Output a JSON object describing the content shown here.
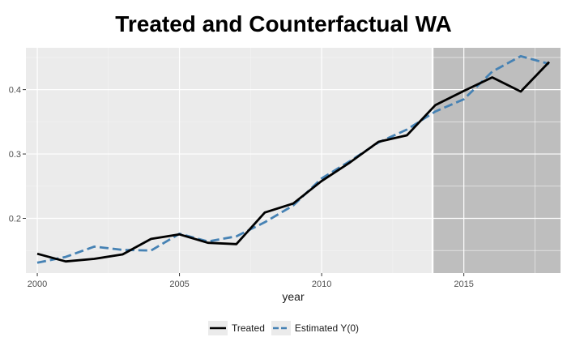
{
  "chart_data": {
    "type": "line",
    "title": "Treated and Counterfactual WA",
    "xlabel": "year",
    "ylabel": "",
    "xlim": [
      1999.6,
      2018.4
    ],
    "ylim": [
      0.115,
      0.465
    ],
    "x_ticks": [
      2000,
      2005,
      2010,
      2015
    ],
    "x_tick_labels": [
      "2000",
      "2005",
      "2010",
      "2015"
    ],
    "y_ticks": [
      0.2,
      0.3,
      0.4
    ],
    "y_tick_labels": [
      "0.2",
      "0.3",
      "0.4"
    ],
    "treatment_start": 2014,
    "treatment_line_x": 2013.9,
    "shaded_region": [
      2013.9,
      2018.4
    ],
    "grid": true,
    "legend_position": "bottom",
    "x": [
      2000,
      2001,
      2002,
      2003,
      2004,
      2005,
      2006,
      2007,
      2008,
      2009,
      2010,
      2011,
      2012,
      2013,
      2014,
      2015,
      2016,
      2017,
      2018
    ],
    "series": [
      {
        "name": "Treated",
        "color": "#000000",
        "dash": "solid",
        "values": [
          0.145,
          0.133,
          0.137,
          0.144,
          0.168,
          0.175,
          0.162,
          0.16,
          0.209,
          0.223,
          0.258,
          0.287,
          0.319,
          0.329,
          0.376,
          0.398,
          0.419,
          0.397,
          0.443
        ]
      },
      {
        "name": "Estimated Y(0)",
        "color": "#4682b4",
        "dash": "dashed",
        "values": [
          0.131,
          0.14,
          0.156,
          0.151,
          0.15,
          0.176,
          0.164,
          0.172,
          0.194,
          0.22,
          0.262,
          0.289,
          0.318,
          0.338,
          0.366,
          0.385,
          0.428,
          0.452,
          0.44
        ]
      }
    ]
  }
}
